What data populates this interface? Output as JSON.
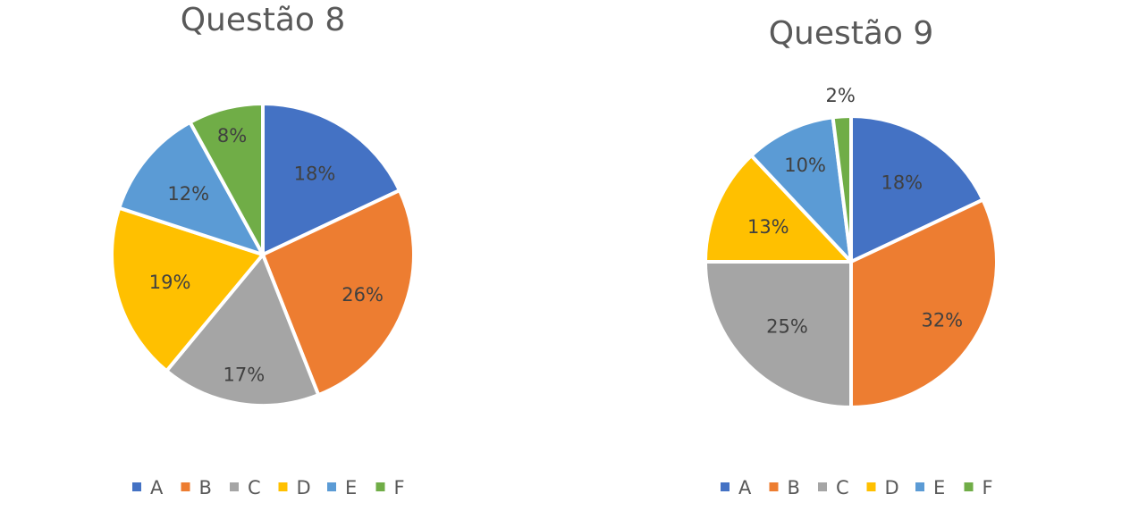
{
  "chart_data": [
    {
      "type": "pie",
      "title": "Questão 8",
      "categories": [
        "A",
        "B",
        "C",
        "D",
        "E",
        "F"
      ],
      "values": [
        18,
        26,
        17,
        19,
        12,
        8
      ],
      "labels": [
        "18%",
        "26%",
        "17%",
        "19%",
        "12%",
        "8%"
      ],
      "colors": [
        "#4472C4",
        "#ED7D31",
        "#A5A5A5",
        "#FFC000",
        "#5B9BD5",
        "#70AD47"
      ],
      "legend": "bottom"
    },
    {
      "type": "pie",
      "title": "Questão 9",
      "categories": [
        "A",
        "B",
        "C",
        "D",
        "E",
        "F"
      ],
      "values": [
        18,
        32,
        25,
        13,
        10,
        2
      ],
      "labels": [
        "18%",
        "32%",
        "25%",
        "13%",
        "10%",
        "2%"
      ],
      "colors": [
        "#4472C4",
        "#ED7D31",
        "#A5A5A5",
        "#FFC000",
        "#5B9BD5",
        "#70AD47"
      ],
      "legend": "bottom"
    }
  ]
}
